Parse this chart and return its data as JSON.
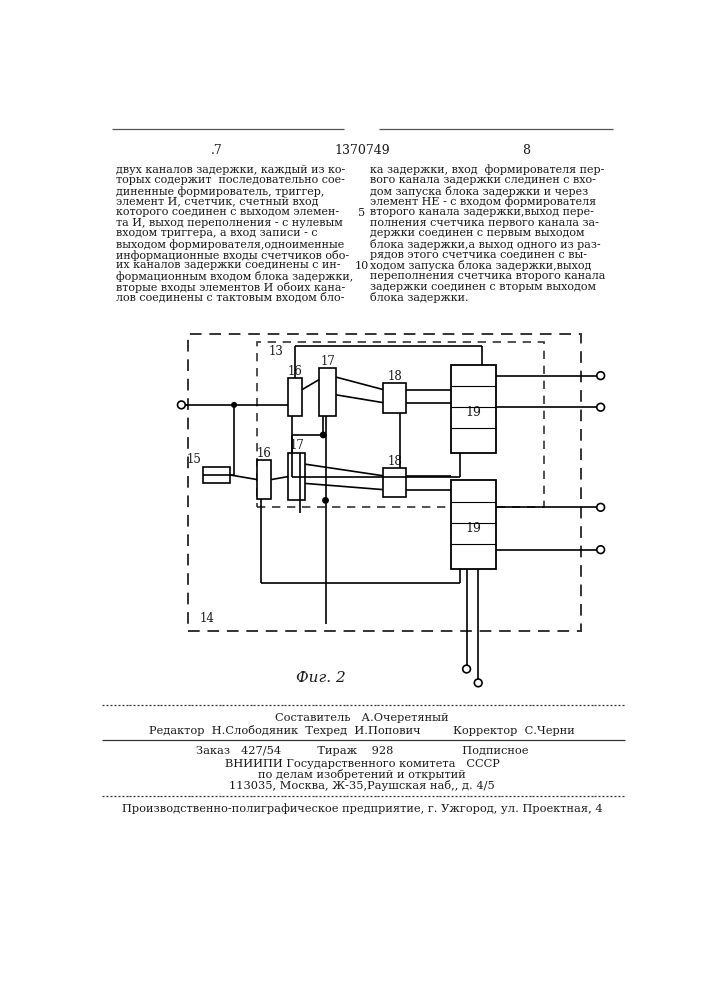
{
  "page_num_left": ".7",
  "patent_num": "1370749",
  "page_num_right": "8",
  "text_left": "двух каналов задержки, каждый из ко-\nторых содержит  последовательно сое-\nдиненные формирователь, триггер,\nэлемент И, счетчик, счетный вход\nкоторого соединен с выходом элемен-\nта И, выход переполнения - с нулевым\nвходом триггера, а вход записи - с\nвыходом формирователя,одноименные\nинформационные входы счетчиков обо-\nих каналов задержки соединены с ин-\nформационным входом блока задержки,\nвторые входы элементов И обоих кана-\nлов соединены с тактовым входом бло-",
  "text_right": "ка задержки, вход  формирователя пер-\nвого канала задержки слединен с вхо-\nдом запуска блока задержки и через\nэлемент НЕ - с входом формирователя\nвторого канала задержки,выход пере-\nполнения счетчика первого канала за-\nдержки соединен с первым выходом\nблока задержки,а выход одного из раз-\nрядов этого счетчика соединен с вы-\nходом запуска блока задержки,выход\nпереполнения счетчика второго канала\nзадержки соединен с вторым выходом\nблока задержки.",
  "line_num_5": "5",
  "line_num_10": "10",
  "fig_caption": "Фиг. 2",
  "footer_line1": "Составитель   А.Очеретяный",
  "footer_line2": "Редактор  Н.Слободяник  Техред  И.Попович         Корректор  С.Черни",
  "footer_line3": "Заказ   427/54          Тираж    928                   Подписное",
  "footer_line4": "ВНИИПИ Государственного комитета   СССР",
  "footer_line5": "по делам изобретений и открытий",
  "footer_line6": "113035, Москва, Ж-35,Раушская наб,, д. 4/5",
  "footer_line7": "Производственно-полиграфическое предприятие, г. Ужгород, ул. Проектная, 4",
  "bg_color": "#ffffff",
  "text_color": "#1a1a1a"
}
